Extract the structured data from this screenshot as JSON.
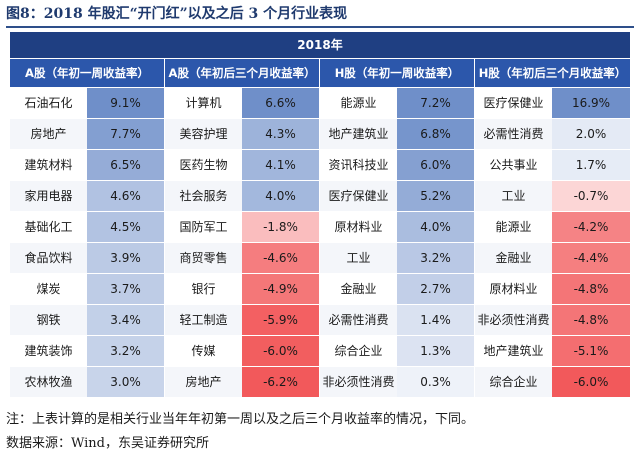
{
  "title": "图8：2018 年股汇“开门红”以及之后 3 个月行业表现",
  "year_header": "2018年",
  "column_headers": [
    "A股（年初一周收益率）",
    "A股（年初后三个月收益率）",
    "H股（年初一周收益率）",
    "H股（年初后三个月收益率）"
  ],
  "colors": {
    "positive": "#6f8fc9",
    "negative": "#f2595b",
    "neutral": "#ffffff"
  },
  "rows": [
    [
      [
        "石油石化",
        "9.1%"
      ],
      [
        "计算机",
        "6.6%"
      ],
      [
        "能源业",
        "7.2%"
      ],
      [
        "医疗保健业",
        "16.9%"
      ]
    ],
    [
      [
        "房地产",
        "7.7%"
      ],
      [
        "美容护理",
        "4.3%"
      ],
      [
        "地产建筑业",
        "6.8%"
      ],
      [
        "必需性消费",
        "2.0%"
      ]
    ],
    [
      [
        "建筑材料",
        "6.5%"
      ],
      [
        "医药生物",
        "4.1%"
      ],
      [
        "资讯科技业",
        "6.0%"
      ],
      [
        "公共事业",
        "1.7%"
      ]
    ],
    [
      [
        "家用电器",
        "4.6%"
      ],
      [
        "社会服务",
        "4.0%"
      ],
      [
        "医疗保健业",
        "5.2%"
      ],
      [
        "工业",
        "-0.7%"
      ]
    ],
    [
      [
        "基础化工",
        "4.5%"
      ],
      [
        "国防军工",
        "-1.8%"
      ],
      [
        "原材料业",
        "4.0%"
      ],
      [
        "能源业",
        "-4.2%"
      ]
    ],
    [
      [
        "食品饮料",
        "3.9%"
      ],
      [
        "商贸零售",
        "-4.6%"
      ],
      [
        "工业",
        "3.2%"
      ],
      [
        "金融业",
        "-4.4%"
      ]
    ],
    [
      [
        "煤炭",
        "3.7%"
      ],
      [
        "银行",
        "-4.9%"
      ],
      [
        "金融业",
        "2.7%"
      ],
      [
        "原材料业",
        "-4.8%"
      ]
    ],
    [
      [
        "钢铁",
        "3.4%"
      ],
      [
        "轻工制造",
        "-5.9%"
      ],
      [
        "必需性消费",
        "1.4%"
      ],
      [
        "非必须性消费",
        "-4.8%"
      ]
    ],
    [
      [
        "建筑装饰",
        "3.2%"
      ],
      [
        "传媒",
        "-6.0%"
      ],
      [
        "综合企业",
        "1.3%"
      ],
      [
        "地产建筑业",
        "-5.1%"
      ]
    ],
    [
      [
        "农林牧渔",
        "3.0%"
      ],
      [
        "房地产",
        "-6.2%"
      ],
      [
        "非必须性消费",
        "0.3%"
      ],
      [
        "综合企业",
        "-6.0%"
      ]
    ]
  ],
  "note": "注：上表计算的是相关行业当年年初第一周以及之后三个月收益率的情况，下同。",
  "source": "数据来源：Wind，东吴证券研究所"
}
